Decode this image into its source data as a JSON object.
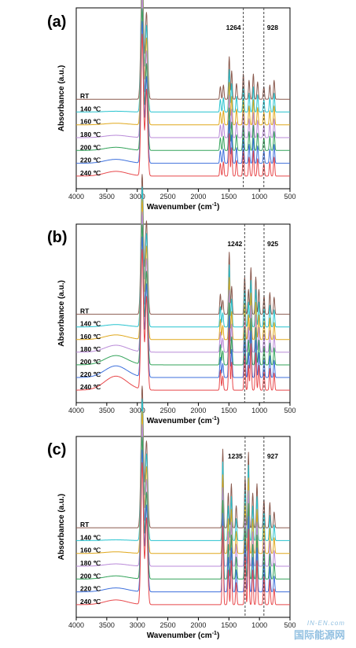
{
  "series_colors": [
    "#8a5a4e",
    "#27c3cf",
    "#e0a81c",
    "#b98ad8",
    "#33a35a",
    "#3c6fdc",
    "#e8484b"
  ],
  "chart_data": [
    {
      "type": "line",
      "panel": "(a)",
      "xlabel": "Wavenumber (cm",
      "xlabel_sup": "-1",
      "xlabel_end": ")",
      "ylabel": "Absorbance (a.u.)",
      "xlim": [
        4000,
        500
      ],
      "x_reversed": true,
      "x_ticks": [
        4000,
        3500,
        3000,
        2500,
        2000,
        1500,
        1000,
        500
      ],
      "series_names": [
        "RT",
        "140 ℃",
        "160 ℃",
        "180 ℃",
        "200 ℃",
        "220 ℃",
        "240 ℃"
      ],
      "reference_lines": [
        {
          "x": 1264,
          "label": "1264"
        },
        {
          "x": 928,
          "label": "928"
        }
      ],
      "peaks": [
        {
          "x": 2920,
          "height": 9.0
        },
        {
          "x": 2850,
          "height": 5.5
        },
        {
          "x": 1640,
          "height": 0.8
        },
        {
          "x": 1590,
          "height": 0.9
        },
        {
          "x": 1495,
          "height": 2.7
        },
        {
          "x": 1455,
          "height": 1.8
        },
        {
          "x": 1376,
          "height": 1.0
        },
        {
          "x": 1264,
          "height": 1.6
        },
        {
          "x": 1170,
          "height": 1.2
        },
        {
          "x": 1100,
          "height": 1.6
        },
        {
          "x": 1030,
          "height": 1.1
        },
        {
          "x": 928,
          "height": 0.8
        },
        {
          "x": 830,
          "height": 0.9
        },
        {
          "x": 760,
          "height": 1.2
        }
      ]
    },
    {
      "type": "line",
      "panel": "(b)",
      "xlabel": "Wavenumber (cm",
      "xlabel_sup": "-1",
      "xlabel_end": ")",
      "ylabel": "Absorbance (a.u.)",
      "xlim": [
        4000,
        500
      ],
      "x_reversed": true,
      "x_ticks": [
        4000,
        3500,
        3000,
        2500,
        2000,
        1500,
        1000,
        500
      ],
      "series_names": [
        "RT",
        "140 ℃",
        "160 ℃",
        "180 ℃",
        "200 ℃",
        "220 ℃",
        "240 ℃"
      ],
      "reference_lines": [
        {
          "x": 1242,
          "label": "1242"
        },
        {
          "x": 925,
          "label": "925"
        }
      ],
      "peaks": [
        {
          "x": 2920,
          "height": 9.0
        },
        {
          "x": 2850,
          "height": 6.0
        },
        {
          "x": 1640,
          "height": 1.3
        },
        {
          "x": 1600,
          "height": 0.9
        },
        {
          "x": 1495,
          "height": 4.0
        },
        {
          "x": 1455,
          "height": 1.8
        },
        {
          "x": 1242,
          "height": 2.4
        },
        {
          "x": 1180,
          "height": 1.6
        },
        {
          "x": 1140,
          "height": 3.0
        },
        {
          "x": 1060,
          "height": 2.4
        },
        {
          "x": 1010,
          "height": 1.6
        },
        {
          "x": 925,
          "height": 1.2
        },
        {
          "x": 830,
          "height": 1.4
        },
        {
          "x": 760,
          "height": 1.1
        }
      ]
    },
    {
      "type": "line",
      "panel": "(c)",
      "xlabel": "Wavenumber (cm",
      "xlabel_sup": "-1",
      "xlabel_end": ")",
      "ylabel": "Absorbance (a.u.)",
      "xlim": [
        4000,
        500
      ],
      "x_reversed": true,
      "x_ticks": [
        4000,
        3500,
        3000,
        2500,
        2000,
        1500,
        1000,
        500
      ],
      "series_names": [
        "RT",
        "140 ℃",
        "160 ℃",
        "180 ℃",
        "200 ℃",
        "220 ℃",
        "240 ℃"
      ],
      "reference_lines": [
        {
          "x": 1235,
          "label": "1235"
        },
        {
          "x": 927,
          "label": "927"
        }
      ],
      "peaks": [
        {
          "x": 2920,
          "height": 9.0
        },
        {
          "x": 2850,
          "height": 5.5
        },
        {
          "x": 1600,
          "height": 5.0
        },
        {
          "x": 1510,
          "height": 2.2
        },
        {
          "x": 1460,
          "height": 2.8
        },
        {
          "x": 1380,
          "height": 1.4
        },
        {
          "x": 1235,
          "height": 3.2
        },
        {
          "x": 1180,
          "height": 4.8
        },
        {
          "x": 1110,
          "height": 2.2
        },
        {
          "x": 1040,
          "height": 2.8
        },
        {
          "x": 927,
          "height": 1.8
        },
        {
          "x": 830,
          "height": 1.6
        },
        {
          "x": 760,
          "height": 1.0
        }
      ]
    }
  ],
  "watermark": {
    "top": "IN-EN.com",
    "bottom": "国际能源网"
  }
}
